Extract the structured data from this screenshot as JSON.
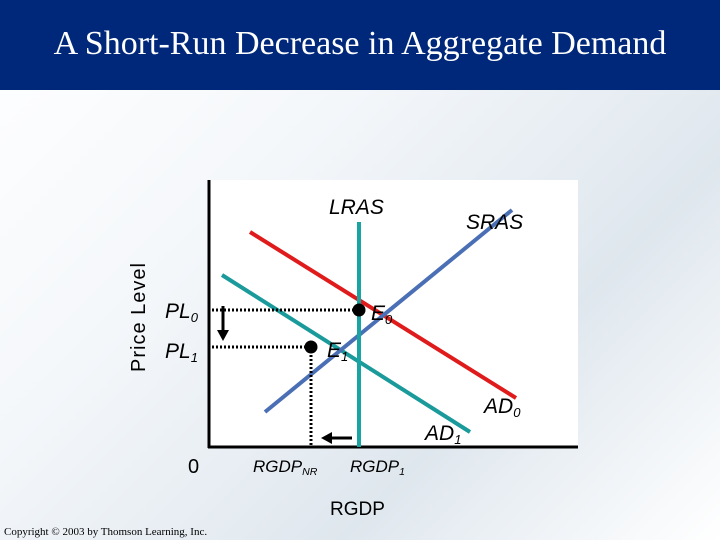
{
  "slide": {
    "title": "A Short-Run Decrease in Aggregate Demand",
    "copyright": "Copyright © 2003 by Thomson Learning, Inc."
  },
  "axes": {
    "y_title": "Price Level",
    "x_title": "RGDP",
    "origin": "0"
  },
  "curves": {
    "lras": "LRAS",
    "sras": "SRAS",
    "ad0": {
      "main": "AD",
      "sub": "0"
    },
    "ad1": {
      "main": "AD",
      "sub": "1"
    }
  },
  "points": {
    "e0": {
      "main": "E",
      "sub": "0"
    },
    "e1": {
      "main": "E",
      "sub": "1"
    }
  },
  "price_levels": {
    "pl0": {
      "main": "PL",
      "sub": "0"
    },
    "pl1": {
      "main": "PL",
      "sub": "1"
    }
  },
  "output_levels": {
    "rgdp_nr": {
      "main": "RGDP",
      "sub": "NR"
    },
    "rgdp1": {
      "main": "RGDP",
      "sub": "1"
    }
  },
  "colors": {
    "title_bar": "#00287a",
    "lras": "#1aa3a3",
    "sras": "#4a6fb5",
    "ad0": "#e01b1b",
    "ad1": "#1a9a9a"
  }
}
